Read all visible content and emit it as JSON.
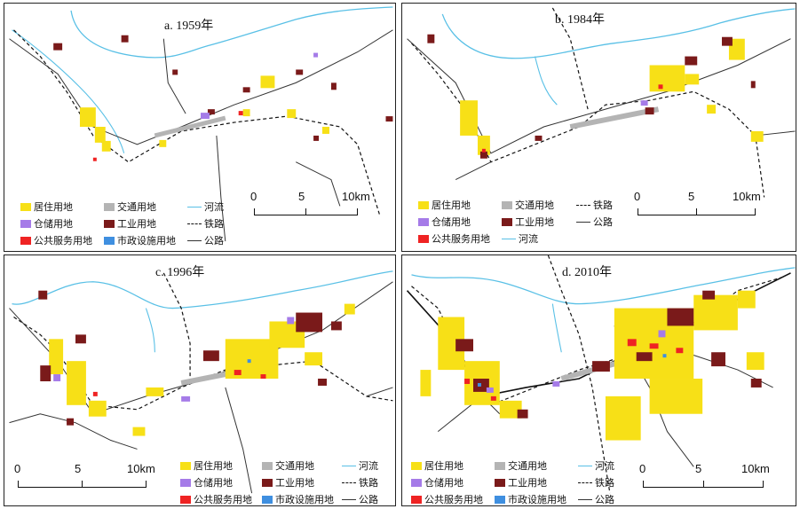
{
  "panels": [
    {
      "id": "a",
      "title": "a. 1959年"
    },
    {
      "id": "b",
      "title": "b. 1984年"
    },
    {
      "id": "c",
      "title": "c. 1996年"
    },
    {
      "id": "d",
      "title": "d. 2010年"
    }
  ],
  "legend": {
    "residential": "居住用地",
    "transport": "交通用地",
    "warehouse": "仓储用地",
    "industrial": "工业用地",
    "public_service": "公共服务用地",
    "municipal": "市政设施用地",
    "river": "河流",
    "railway": "铁路",
    "road": "公路"
  },
  "scale": {
    "t0": "0",
    "t1": "5",
    "t2": "10km"
  },
  "colors": {
    "residential": "#f7e017",
    "transport": "#b4b4b4",
    "warehouse": "#a57be8",
    "industrial": "#7a1a1a",
    "public_service": "#ef2323",
    "municipal": "#3f8fe0",
    "river": "#59c0e6",
    "railway": "#111111",
    "road": "#333333"
  }
}
